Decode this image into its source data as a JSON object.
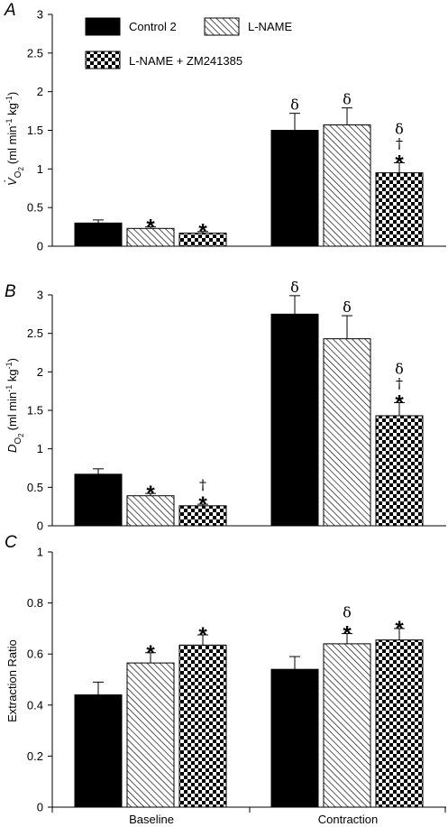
{
  "legend": [
    {
      "label": "Control 2",
      "pattern": "solid"
    },
    {
      "label": "L-NAME",
      "pattern": "hatch"
    },
    {
      "label": "L-NAME + ZM241385",
      "pattern": "checker"
    }
  ],
  "x_categories": [
    "Baseline",
    "Contraction"
  ],
  "chart_data": [
    {
      "type": "bar",
      "panel": "A",
      "ylabel_parts": {
        "v": "V",
        "sub": "O",
        "sub2": "2",
        "units": "(ml min",
        "exp1": "-1",
        "kg": " kg",
        "exp2": "-1",
        "close": ")"
      },
      "ylim": [
        0,
        3
      ],
      "yticks": [
        "0",
        "0.5",
        "1",
        "1.5",
        "2",
        "2.5",
        "3"
      ],
      "categories": [
        "Baseline",
        "Contraction"
      ],
      "series": [
        {
          "name": "Control 2",
          "values": [
            0.3,
            1.5
          ],
          "errors": [
            0.04,
            0.22
          ],
          "marks": [
            [],
            [
              "δ"
            ]
          ]
        },
        {
          "name": "L-NAME",
          "values": [
            0.23,
            1.57
          ],
          "errors": [
            0.02,
            0.22
          ],
          "marks": [
            [
              "*"
            ],
            [
              "δ"
            ]
          ]
        },
        {
          "name": "L-NAME + ZM241385",
          "values": [
            0.17,
            0.95
          ],
          "errors": [
            0.02,
            0.13
          ],
          "marks": [
            [
              "*"
            ],
            [
              "*",
              "†",
              "δ"
            ]
          ]
        }
      ]
    },
    {
      "type": "bar",
      "panel": "B",
      "ylabel_parts": {
        "v": "D",
        "sub": "O",
        "sub2": "2",
        "units": "(ml min",
        "exp1": "-1",
        "kg": " kg",
        "exp2": "-1",
        "close": ")"
      },
      "ylim": [
        0,
        3
      ],
      "yticks": [
        "0",
        "0.5",
        "1",
        "1.5",
        "2",
        "2.5",
        "3"
      ],
      "categories": [
        "Baseline",
        "Contraction"
      ],
      "series": [
        {
          "name": "Control 2",
          "values": [
            0.67,
            2.75
          ],
          "errors": [
            0.07,
            0.24
          ],
          "marks": [
            [],
            [
              "δ"
            ]
          ]
        },
        {
          "name": "L-NAME",
          "values": [
            0.39,
            2.43
          ],
          "errors": [
            0.03,
            0.3
          ],
          "marks": [
            [
              "*"
            ],
            [
              "δ"
            ]
          ]
        },
        {
          "name": "L-NAME + ZM241385",
          "values": [
            0.26,
            1.43
          ],
          "errors": [
            0.02,
            0.17
          ],
          "marks": [
            [
              "*",
              "†"
            ],
            [
              "*",
              "†",
              "δ"
            ]
          ]
        }
      ]
    },
    {
      "type": "bar",
      "panel": "C",
      "ylabel": "Extraction Ratio",
      "ylim": [
        0,
        1
      ],
      "yticks": [
        "0",
        "0.2",
        "0.4",
        "0.6",
        "0.8",
        "1"
      ],
      "categories": [
        "Baseline",
        "Contraction"
      ],
      "series": [
        {
          "name": "Control 2",
          "values": [
            0.44,
            0.54
          ],
          "errors": [
            0.05,
            0.05
          ],
          "marks": [
            [],
            []
          ]
        },
        {
          "name": "L-NAME",
          "values": [
            0.565,
            0.64
          ],
          "errors": [
            0.04,
            0.04
          ],
          "marks": [
            [
              "*"
            ],
            [
              "*",
              "δ"
            ]
          ]
        },
        {
          "name": "L-NAME + ZM241385",
          "values": [
            0.635,
            0.655
          ],
          "errors": [
            0.04,
            0.045
          ],
          "marks": [
            [
              "*"
            ],
            [
              "*"
            ]
          ]
        }
      ]
    }
  ]
}
